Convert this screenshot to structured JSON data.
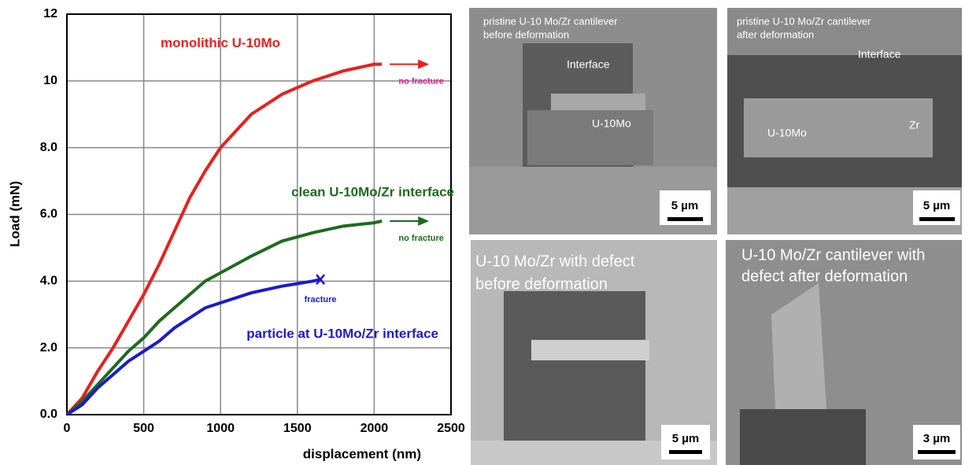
{
  "chart_data": {
    "type": "line",
    "xlabel": "displacement (nm)",
    "ylabel": "Load (mN)",
    "xlim": [
      0,
      2500
    ],
    "xticks": [
      0,
      500,
      1000,
      1500,
      2000,
      2500
    ],
    "ylim": [
      0,
      12
    ],
    "yticks": [
      {
        "value": 0,
        "label": "0.0"
      },
      {
        "value": 2,
        "label": "2.0"
      },
      {
        "value": 4,
        "label": "4.0"
      },
      {
        "value": 6,
        "label": "6.0"
      },
      {
        "value": 8,
        "label": "8.0"
      },
      10,
      12
    ],
    "grid": true,
    "series": [
      {
        "name": "monolithic U-10Mo",
        "color": "#e8201c",
        "note": "no fracture",
        "note_color": "#e0208a",
        "x": [
          0,
          100,
          200,
          300,
          400,
          500,
          600,
          700,
          800,
          900,
          1000,
          1200,
          1400,
          1600,
          1800,
          2000,
          2050
        ],
        "values": [
          0,
          0.5,
          1.3,
          2.0,
          2.8,
          3.6,
          4.5,
          5.5,
          6.5,
          7.3,
          8.0,
          9.0,
          9.6,
          10.0,
          10.3,
          10.5,
          10.5
        ]
      },
      {
        "name": "clean U-10Mo/Zr interface",
        "color": "#1e6b1e",
        "note": "no fracture",
        "note_color": "#1e6b1e",
        "x": [
          0,
          100,
          200,
          300,
          400,
          500,
          600,
          700,
          800,
          900,
          1000,
          1200,
          1400,
          1600,
          1800,
          2000,
          2050
        ],
        "values": [
          0,
          0.4,
          0.9,
          1.4,
          1.9,
          2.3,
          2.8,
          3.2,
          3.6,
          4.0,
          4.25,
          4.75,
          5.2,
          5.45,
          5.65,
          5.75,
          5.8
        ]
      },
      {
        "name": "particle at U-10Mo/Zr interface",
        "color": "#1a1ad0",
        "note": "fracture",
        "note_color": "#1a1ad0",
        "x": [
          0,
          100,
          200,
          300,
          400,
          500,
          600,
          700,
          800,
          900,
          1000,
          1200,
          1400,
          1600,
          1650
        ],
        "values": [
          0,
          0.3,
          0.8,
          1.2,
          1.6,
          1.9,
          2.2,
          2.6,
          2.9,
          3.2,
          3.35,
          3.65,
          3.85,
          4.0,
          4.05
        ]
      }
    ]
  },
  "panels": [
    {
      "caption": [
        "pristine U-10 Mo/Zr cantilever",
        "before deformation"
      ],
      "labels": [
        "Interface",
        "U-10Mo"
      ],
      "scale": "5 µm"
    },
    {
      "caption": [
        "pristine U-10 Mo/Zr cantilever",
        "after deformation"
      ],
      "labels": [
        "Interface",
        "U-10Mo",
        "Zr"
      ],
      "scale": "5 µm"
    },
    {
      "caption": [
        "U-10 Mo/Zr with defect",
        "before deformation"
      ],
      "labels": [],
      "scale": "5 µm"
    },
    {
      "caption": [
        "U-10 Mo/Zr cantilever with",
        "defect after deformation"
      ],
      "labels": [],
      "scale": "3 µm"
    }
  ]
}
